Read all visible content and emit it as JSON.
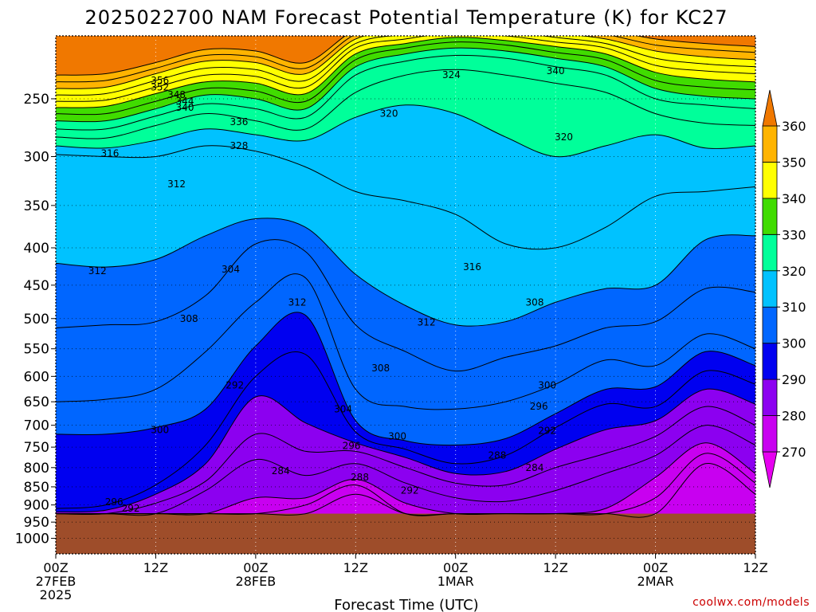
{
  "chart_data": {
    "type": "heatmap",
    "title": "2025022700 NAM Forecast Potential Temperature (K) for KC27",
    "xlabel": "Forecast Time (UTC)",
    "ylabel": "",
    "y_scale": "log",
    "y_reversed": true,
    "ylim": [
      1050,
      205
    ],
    "yticks": [
      250,
      300,
      350,
      400,
      450,
      500,
      550,
      600,
      650,
      700,
      750,
      800,
      850,
      900,
      950,
      1000
    ],
    "x_hours": [
      0,
      6,
      12,
      18,
      24,
      30,
      36,
      42,
      48,
      54,
      60,
      66,
      72,
      78,
      84
    ],
    "xlim": [
      0,
      84
    ],
    "xticks": [
      {
        "hour": 0,
        "lines": [
          "00Z",
          "27FEB",
          "2025"
        ]
      },
      {
        "hour": 12,
        "lines": [
          "12Z"
        ]
      },
      {
        "hour": 24,
        "lines": [
          "00Z",
          "28FEB"
        ]
      },
      {
        "hour": 36,
        "lines": [
          "12Z"
        ]
      },
      {
        "hour": 48,
        "lines": [
          "00Z",
          "1MAR"
        ]
      },
      {
        "hour": 60,
        "lines": [
          "12Z"
        ]
      },
      {
        "hour": 72,
        "lines": [
          "00Z",
          "2MAR"
        ]
      },
      {
        "hour": 84,
        "lines": [
          "12Z"
        ]
      }
    ],
    "grid": true,
    "contour_interval": 4,
    "surface_pressure": 925,
    "ground_color": "#9e4d2a",
    "isentropes": [
      {
        "label": 272,
        "p": [
          925,
          925,
          925,
          925,
          925,
          925,
          870,
          925,
          925,
          925,
          925,
          925,
          925,
          790,
          870
        ]
      },
      {
        "label": 276,
        "p": [
          925,
          925,
          925,
          925,
          925,
          900,
          845,
          925,
          925,
          925,
          925,
          925,
          880,
          765,
          840
        ]
      },
      {
        "label": 280,
        "p": [
          925,
          925,
          925,
          925,
          880,
          880,
          830,
          895,
          925,
          925,
          925,
          910,
          825,
          740,
          815
        ]
      },
      {
        "label": 284,
        "p": [
          925,
          925,
          925,
          860,
          780,
          820,
          790,
          840,
          880,
          890,
          860,
          815,
          770,
          700,
          745
        ]
      },
      {
        "label": 288,
        "p": [
          925,
          925,
          895,
          835,
          720,
          760,
          760,
          800,
          840,
          845,
          800,
          765,
          725,
          660,
          700
        ]
      },
      {
        "label": 292,
        "p": [
          920,
          915,
          870,
          790,
          640,
          695,
          740,
          775,
          815,
          810,
          755,
          710,
          690,
          625,
          655
        ]
      },
      {
        "label": 296,
        "p": [
          910,
          900,
          845,
          745,
          600,
          560,
          715,
          755,
          790,
          770,
          705,
          655,
          660,
          590,
          615
        ]
      },
      {
        "label": 300,
        "p": [
          720,
          720,
          705,
          665,
          545,
          495,
          690,
          735,
          745,
          730,
          675,
          625,
          620,
          555,
          580
        ]
      },
      {
        "label": 304,
        "p": [
          650,
          645,
          625,
          555,
          475,
          440,
          625,
          660,
          665,
          650,
          615,
          570,
          580,
          525,
          550
        ]
      },
      {
        "label": 308,
        "p": [
          515,
          510,
          505,
          465,
          395,
          405,
          510,
          555,
          590,
          565,
          545,
          515,
          505,
          455,
          460
        ]
      },
      {
        "label": 312,
        "p": [
          420,
          425,
          415,
          385,
          365,
          375,
          435,
          480,
          510,
          505,
          475,
          455,
          450,
          390,
          385
        ]
      },
      {
        "label": 316,
        "p": [
          298,
          300,
          300,
          290,
          295,
          310,
          335,
          345,
          360,
          395,
          400,
          375,
          340,
          335,
          330
        ]
      },
      {
        "label": 320,
        "p": [
          290,
          292,
          285,
          275,
          280,
          285,
          265,
          255,
          262,
          282,
          300,
          290,
          280,
          292,
          290
        ]
      },
      {
        "label": 324,
        "p": [
          282,
          283,
          272,
          262,
          268,
          275,
          245,
          232,
          228,
          232,
          238,
          245,
          262,
          270,
          272
        ]
      },
      {
        "label": 328,
        "p": [
          275,
          275,
          264,
          254,
          258,
          265,
          232,
          222,
          218,
          220,
          226,
          232,
          250,
          255,
          258
        ]
      },
      {
        "label": 332,
        "p": [
          268,
          268,
          258,
          247,
          250,
          258,
          226,
          217,
          213,
          215,
          220,
          226,
          242,
          248,
          250
        ]
      },
      {
        "label": 336,
        "p": [
          262,
          262,
          252,
          242,
          244,
          252,
          221,
          213,
          209,
          211,
          216,
          221,
          236,
          241,
          243
        ]
      },
      {
        "label": 340,
        "p": [
          257,
          256,
          246,
          237,
          238,
          246,
          217,
          210,
          206,
          208,
          212,
          217,
          230,
          235,
          237
        ]
      },
      {
        "label": 344,
        "p": [
          252,
          251,
          241,
          232,
          233,
          241,
          213,
          207,
          203,
          205,
          209,
          213,
          225,
          229,
          231
        ]
      },
      {
        "label": 348,
        "p": [
          247,
          246,
          236,
          227,
          228,
          236,
          210,
          204,
          201,
          202,
          206,
          210,
          220,
          224,
          226
        ]
      },
      {
        "label": 352,
        "p": [
          242,
          241,
          231,
          222,
          223,
          231,
          207,
          201,
          198,
          199,
          203,
          207,
          215,
          219,
          221
        ]
      },
      {
        "label": 356,
        "p": [
          237,
          236,
          227,
          218,
          219,
          227,
          204,
          198,
          195,
          196,
          200,
          204,
          211,
          214,
          216
        ]
      },
      {
        "label": 360,
        "p": [
          232,
          231,
          223,
          214,
          215,
          223,
          201,
          195,
          192,
          193,
          197,
          201,
          207,
          210,
          212
        ]
      }
    ],
    "contour_labels": [
      {
        "text": "356",
        "hour": 12.5,
        "p": 236
      },
      {
        "text": "352",
        "hour": 12.5,
        "p": 241
      },
      {
        "text": "348",
        "hour": 14.5,
        "p": 247
      },
      {
        "text": "344",
        "hour": 15.5,
        "p": 252
      },
      {
        "text": "340",
        "hour": 15.5,
        "p": 257
      },
      {
        "text": "336",
        "hour": 22,
        "p": 269
      },
      {
        "text": "328",
        "hour": 22,
        "p": 290
      },
      {
        "text": "324",
        "hour": 47.5,
        "p": 232
      },
      {
        "text": "320",
        "hour": 40,
        "p": 262
      },
      {
        "text": "340",
        "hour": 60,
        "p": 229
      },
      {
        "text": "320",
        "hour": 61,
        "p": 282
      },
      {
        "text": "316",
        "hour": 6.5,
        "p": 297
      },
      {
        "text": "312",
        "hour": 14.5,
        "p": 327
      },
      {
        "text": "312",
        "hour": 5,
        "p": 430
      },
      {
        "text": "304",
        "hour": 21,
        "p": 428
      },
      {
        "text": "312",
        "hour": 29,
        "p": 475
      },
      {
        "text": "316",
        "hour": 50,
        "p": 425
      },
      {
        "text": "312",
        "hour": 44.5,
        "p": 506
      },
      {
        "text": "308",
        "hour": 16,
        "p": 500
      },
      {
        "text": "308",
        "hour": 57.5,
        "p": 475
      },
      {
        "text": "308",
        "hour": 39,
        "p": 585
      },
      {
        "text": "304",
        "hour": 34.5,
        "p": 665
      },
      {
        "text": "300",
        "hour": 59,
        "p": 617
      },
      {
        "text": "296",
        "hour": 58,
        "p": 660
      },
      {
        "text": "292",
        "hour": 59,
        "p": 712
      },
      {
        "text": "300",
        "hour": 41,
        "p": 725
      },
      {
        "text": "296",
        "hour": 35.5,
        "p": 747
      },
      {
        "text": "292",
        "hour": 21.5,
        "p": 617
      },
      {
        "text": "288",
        "hour": 53,
        "p": 770
      },
      {
        "text": "284",
        "hour": 57.5,
        "p": 800
      },
      {
        "text": "288",
        "hour": 36.5,
        "p": 825
      },
      {
        "text": "292",
        "hour": 42.5,
        "p": 860
      },
      {
        "text": "284",
        "hour": 27,
        "p": 808
      },
      {
        "text": "300",
        "hour": 12.5,
        "p": 710
      },
      {
        "text": "296",
        "hour": 7,
        "p": 892
      },
      {
        "text": "292",
        "hour": 9,
        "p": 910
      }
    ],
    "colorbar": {
      "levels": [
        270,
        280,
        290,
        300,
        310,
        320,
        330,
        340,
        350,
        360
      ],
      "min": 260,
      "max": 370,
      "colors": [
        "#e600f0",
        "#c800f0",
        "#8c00f0",
        "#4b00f0",
        "#0000f0",
        "#0066ff",
        "#00c2ff",
        "#00ff9a",
        "#00dc00",
        "#a0e632",
        "#ffff00",
        "#ffb400",
        "#f07800"
      ],
      "bands": [
        {
          "from": 260,
          "to": 270,
          "color": "#e600f0"
        },
        {
          "from": 270,
          "to": 280,
          "color": "#c800f0"
        },
        {
          "from": 280,
          "to": 290,
          "color": "#8c00f0"
        },
        {
          "from": 290,
          "to": 300,
          "color": "#0000f0"
        },
        {
          "from": 300,
          "to": 310,
          "color": "#0066ff"
        },
        {
          "from": 310,
          "to": 320,
          "color": "#00c2ff"
        },
        {
          "from": 320,
          "to": 330,
          "color": "#00ff9a"
        },
        {
          "from": 330,
          "to": 340,
          "color": "#40dc00"
        },
        {
          "from": 340,
          "to": 350,
          "color": "#ffff00"
        },
        {
          "from": 350,
          "to": 360,
          "color": "#ffb400"
        },
        {
          "from": 360,
          "to": 370,
          "color": "#f07800"
        }
      ]
    },
    "credit": "coolwx.com/models"
  }
}
